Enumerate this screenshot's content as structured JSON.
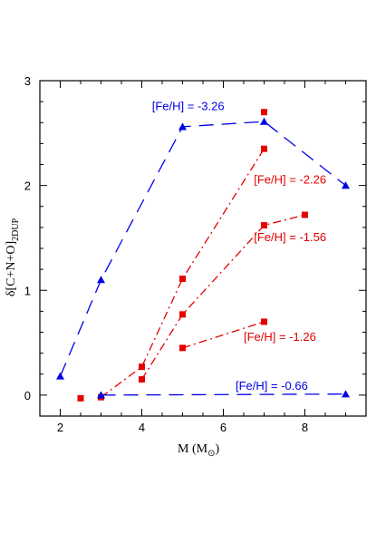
{
  "chart_data": {
    "type": "line",
    "xlabel": "M  (M",
    "xlabel_sub": "⊙",
    "xlabel_close": ")",
    "ylabel": "δ[C+N+O]",
    "ylabel_sub": "2DUP",
    "xlim": [
      1.5,
      9.5
    ],
    "ylim": [
      -0.2,
      3.0
    ],
    "xticks": [
      2,
      4,
      6,
      8
    ],
    "yticks": [
      0,
      1,
      2,
      3
    ],
    "grid": false,
    "legend": "none",
    "colors": {
      "blue": "#0000e6",
      "red": "#e60000"
    },
    "series": [
      {
        "name": "[Fe/H] = -3.26",
        "color": "#0000e6",
        "marker": "triangle",
        "dash": "long-dash",
        "x": [
          2,
          3,
          5,
          7,
          9
        ],
        "y": [
          0.18,
          1.1,
          2.56,
          2.61,
          2.0
        ]
      },
      {
        "name": "[Fe/H] = -2.26",
        "color": "#e60000",
        "marker": "square",
        "dash": "dash-dot",
        "x": [
          3,
          4,
          5,
          7
        ],
        "y": [
          -0.02,
          0.27,
          1.11,
          2.35
        ]
      },
      {
        "name": "[Fe/H] = -1.56",
        "color": "#e60000",
        "marker": "square",
        "dash": "dash-dot",
        "x": [
          4,
          5,
          7,
          8
        ],
        "y": [
          0.15,
          0.77,
          1.62,
          1.72
        ]
      },
      {
        "name": "[Fe/H] = -1.26",
        "color": "#e60000",
        "marker": "square",
        "dash": "dash-dot",
        "x": [
          5,
          7
        ],
        "y": [
          0.45,
          0.7
        ]
      },
      {
        "name": "[Fe/H] = -0.66",
        "color": "#0000e6",
        "marker": "triangle",
        "dash": "long-dash",
        "x": [
          3,
          9
        ],
        "y": [
          0.0,
          0.01
        ]
      }
    ],
    "extra_points": [
      {
        "color": "#e60000",
        "marker": "square",
        "x": 2.5,
        "y": -0.03
      },
      {
        "color": "#e60000",
        "marker": "square",
        "x": 7,
        "y": 2.7
      }
    ],
    "annotations": [
      {
        "text": "[Fe/H] = -3.26",
        "color": "#0000e6",
        "x": 4.25,
        "y": 2.72,
        "anchor": "start"
      },
      {
        "text": "[Fe/H] = -2.26",
        "color": "#e60000",
        "x": 6.75,
        "y": 2.02,
        "anchor": "start"
      },
      {
        "text": "[Fe/H] = -1.56",
        "color": "#e60000",
        "x": 6.75,
        "y": 1.47,
        "anchor": "start"
      },
      {
        "text": "[Fe/H] = -1.26",
        "color": "#e60000",
        "x": 6.5,
        "y": 0.52,
        "anchor": "start"
      },
      {
        "text": "[Fe/H] = -0.66",
        "color": "#0000e6",
        "x": 6.3,
        "y": 0.05,
        "anchor": "start"
      }
    ]
  }
}
